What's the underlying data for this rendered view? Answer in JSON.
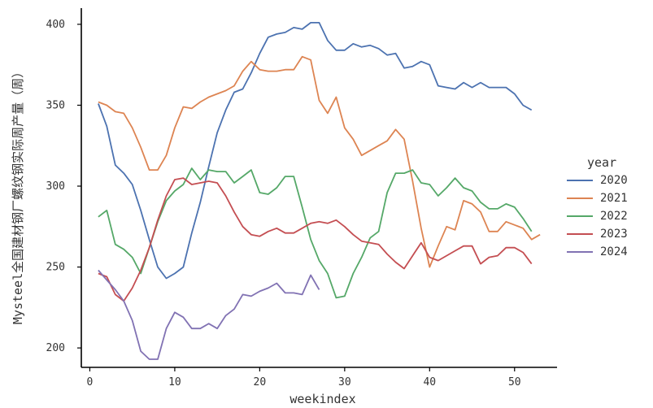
{
  "chart_data": {
    "type": "line",
    "xlabel": "weekindex",
    "ylabel": "Mysteel全国建材钢厂螺纹钢实际周产量（周）",
    "xlim": [
      -1,
      55
    ],
    "ylim": [
      188,
      410
    ],
    "xticks": [
      0,
      10,
      20,
      30,
      40,
      50
    ],
    "yticks": [
      200,
      250,
      300,
      350,
      400
    ],
    "grid": false,
    "legend": {
      "title": "year",
      "placement": "right"
    },
    "colors": {
      "2020": "#4c72b0",
      "2021": "#dd8452",
      "2022": "#55a868",
      "2023": "#c44e52",
      "2024": "#8172b3"
    },
    "series": [
      {
        "name": "2020",
        "x": [
          1,
          2,
          3,
          4,
          5,
          6,
          7,
          8,
          9,
          10,
          11,
          12,
          13,
          14,
          15,
          16,
          17,
          18,
          19,
          20,
          21,
          22,
          23,
          24,
          25,
          26,
          27,
          28,
          29,
          30,
          31,
          32,
          33,
          34,
          35,
          36,
          37,
          38,
          39,
          40,
          41,
          42,
          43,
          44,
          45,
          46,
          47,
          48,
          49,
          50,
          51,
          52
        ],
        "values": [
          351,
          337,
          313,
          308,
          301,
          285,
          267,
          250,
          243,
          246,
          250,
          271,
          290,
          312,
          333,
          347,
          358,
          360,
          370,
          382,
          392,
          394,
          395,
          398,
          397,
          401,
          401,
          390,
          384,
          384,
          388,
          386,
          387,
          385,
          381,
          382,
          373,
          374,
          377,
          375,
          362,
          361,
          360,
          364,
          361,
          364,
          361,
          361,
          361,
          357,
          350,
          347
        ]
      },
      {
        "name": "2021",
        "x": [
          1,
          2,
          3,
          4,
          5,
          6,
          7,
          8,
          9,
          10,
          11,
          12,
          13,
          14,
          15,
          16,
          17,
          18,
          19,
          20,
          21,
          22,
          23,
          24,
          25,
          26,
          27,
          28,
          29,
          30,
          31,
          32,
          33,
          34,
          35,
          36,
          37,
          38,
          39,
          40,
          41,
          42,
          43,
          44,
          45,
          46,
          47,
          48,
          49,
          50,
          51,
          52,
          53
        ],
        "values": [
          352,
          350,
          346,
          345,
          336,
          324,
          310,
          310,
          319,
          336,
          349,
          348,
          352,
          355,
          357,
          359,
          362,
          371,
          377,
          372,
          371,
          371,
          372,
          372,
          380,
          378,
          353,
          345,
          355,
          336,
          329,
          319,
          322,
          325,
          328,
          335,
          329,
          303,
          274,
          250,
          263,
          275,
          273,
          291,
          289,
          284,
          272,
          272,
          278,
          276,
          274,
          267,
          270
        ]
      },
      {
        "name": "2022",
        "x": [
          1,
          2,
          3,
          4,
          5,
          6,
          7,
          8,
          9,
          10,
          11,
          12,
          13,
          14,
          15,
          16,
          17,
          18,
          19,
          20,
          21,
          22,
          23,
          24,
          25,
          26,
          27,
          28,
          29,
          30,
          31,
          32,
          33,
          34,
          35,
          36,
          37,
          38,
          39,
          40,
          41,
          42,
          43,
          44,
          45,
          46,
          47,
          48,
          49,
          50,
          51,
          52
        ],
        "values": [
          281,
          285,
          264,
          261,
          256,
          246,
          262,
          278,
          291,
          297,
          301,
          311,
          304,
          310,
          309,
          309,
          302,
          306,
          310,
          296,
          295,
          299,
          306,
          306,
          287,
          267,
          254,
          246,
          231,
          232,
          246,
          256,
          268,
          272,
          296,
          308,
          308,
          310,
          302,
          301,
          294,
          299,
          305,
          299,
          297,
          290,
          286,
          286,
          289,
          287,
          280,
          272
        ]
      },
      {
        "name": "2023",
        "x": [
          1,
          2,
          3,
          4,
          5,
          6,
          7,
          8,
          9,
          10,
          11,
          12,
          13,
          14,
          15,
          16,
          17,
          18,
          19,
          20,
          21,
          22,
          23,
          24,
          25,
          26,
          27,
          28,
          29,
          30,
          31,
          32,
          33,
          34,
          35,
          36,
          37,
          38,
          39,
          40,
          41,
          42,
          43,
          44,
          45,
          46,
          47,
          48,
          49,
          50,
          51,
          52
        ],
        "values": [
          246,
          244,
          233,
          229,
          237,
          248,
          262,
          279,
          294,
          304,
          305,
          301,
          302,
          303,
          302,
          294,
          284,
          275,
          270,
          269,
          272,
          274,
          271,
          271,
          274,
          277,
          278,
          277,
          279,
          275,
          270,
          266,
          265,
          264,
          258,
          253,
          249,
          257,
          265,
          256,
          254,
          257,
          260,
          263,
          263,
          252,
          256,
          257,
          262,
          262,
          259,
          252
        ]
      },
      {
        "name": "2024",
        "x": [
          1,
          2,
          3,
          4,
          5,
          6,
          7,
          8,
          9,
          10,
          11,
          12,
          13,
          14,
          15,
          16,
          17,
          18,
          19,
          20,
          21,
          22,
          23,
          24,
          25,
          26,
          27
        ],
        "values": [
          248,
          242,
          236,
          229,
          217,
          198,
          193,
          193,
          212,
          222,
          219,
          212,
          212,
          215,
          212,
          220,
          224,
          233,
          232,
          235,
          237,
          240,
          234,
          234,
          233,
          245,
          236
        ]
      }
    ]
  }
}
